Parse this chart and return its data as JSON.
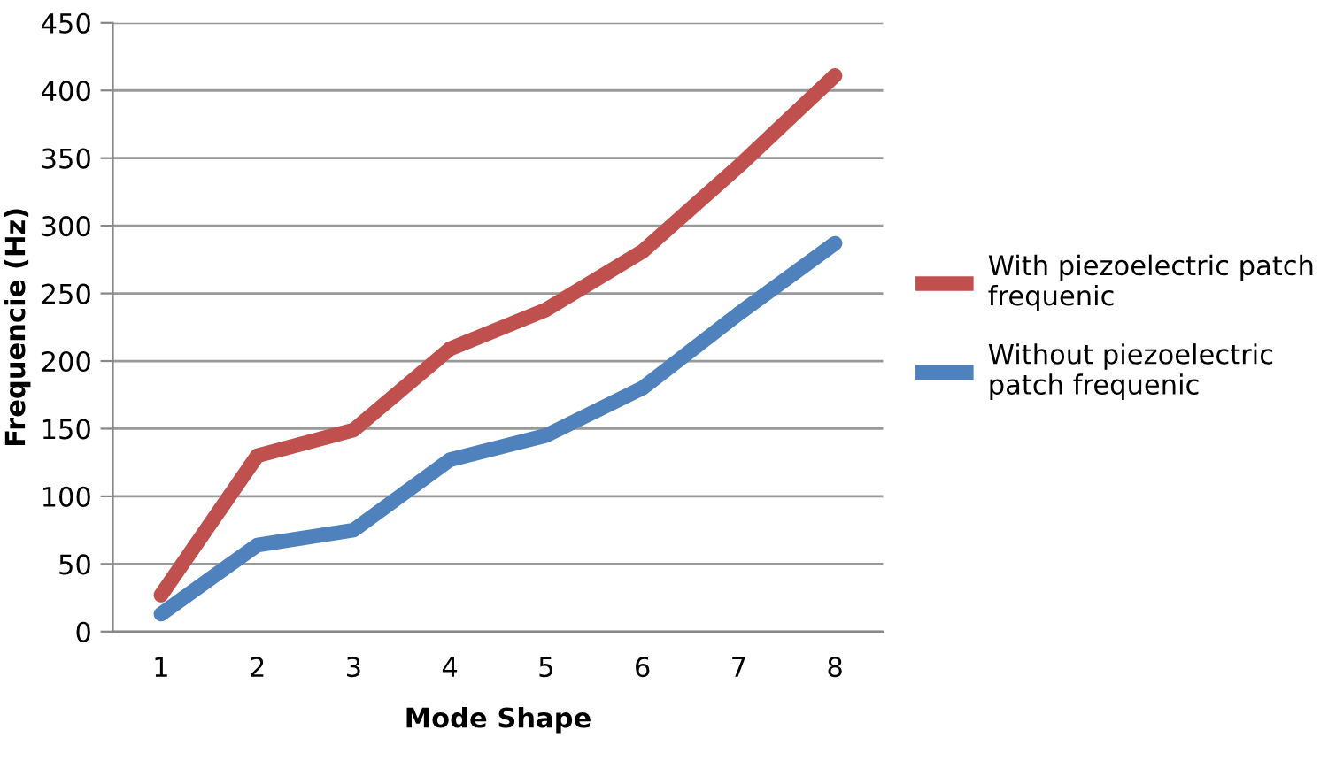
{
  "chart_data": {
    "type": "line",
    "xlabel": "Mode Shape",
    "ylabel": "Frequencie (Hz)",
    "categories": [
      "1",
      "2",
      "3",
      "4",
      "5",
      "6",
      "7",
      "8"
    ],
    "series": [
      {
        "name": "With piezoelectric patch frequenic",
        "color": "#c0504d",
        "values": [
          27,
          130,
          149,
          209,
          238,
          281,
          344,
          411
        ]
      },
      {
        "name": "Without piezoelectric patch frequenic",
        "color": "#4f81bd",
        "values": [
          13,
          64,
          75,
          127,
          145,
          180,
          235,
          287
        ]
      }
    ],
    "ylim": [
      0,
      450
    ],
    "yticks": [
      0,
      50,
      100,
      150,
      200,
      250,
      300,
      350,
      400,
      450
    ],
    "grid": "y",
    "legend": "right",
    "marker": "none",
    "line_style": "solid"
  }
}
